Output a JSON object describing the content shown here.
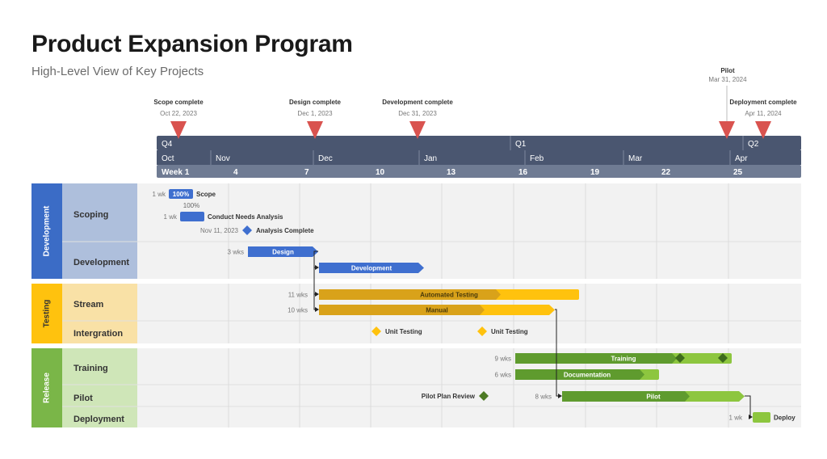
{
  "page": {
    "title": "Product Expansion Program",
    "subtitle": "High-Level View of Key Projects"
  },
  "colors": {
    "header_dark": "#4a5670",
    "header_light": "#6f7b93",
    "milestone_red": "#d9534f",
    "dev_dark": "#3f6fcf",
    "dev_light": "#aebfdc",
    "dev_band": "#3b6cc6",
    "test_dark": "#d9a21a",
    "test_light": "#ffc20e",
    "test_label": "#f9e1a6",
    "test_band": "#ffc20e",
    "rel_dark": "#5f9b2e",
    "rel_light": "#8dc63f",
    "rel_label": "#cfe6b8",
    "rel_band": "#7ab648",
    "row_bg": "#f2f2f2"
  },
  "chart_data": {
    "type": "gantt",
    "timeline": {
      "quarters": [
        {
          "label": "Q4",
          "start": "2023-10-01"
        },
        {
          "label": "Q1",
          "start": "2024-01-01"
        },
        {
          "label": "Q2",
          "start": "2024-04-01"
        }
      ],
      "months": [
        {
          "label": "Oct",
          "start": "2023-10-01"
        },
        {
          "label": "Nov",
          "start": "2023-11-01"
        },
        {
          "label": "Dec",
          "start": "2023-12-01"
        },
        {
          "label": "Jan",
          "start": "2024-01-01"
        },
        {
          "label": "Feb",
          "start": "2024-02-01"
        },
        {
          "label": "Mar",
          "start": "2024-03-01"
        },
        {
          "label": "Apr",
          "start": "2024-04-01"
        }
      ],
      "weeks": [
        {
          "label": "Week 1",
          "date": "2023-10-02"
        },
        {
          "label": "4",
          "date": "2023-11-04"
        },
        {
          "label": "7",
          "date": "2023-12-02"
        },
        {
          "label": "10",
          "date": "2023-12-30"
        },
        {
          "label": "13",
          "date": "2024-01-27"
        },
        {
          "label": "16",
          "date": "2024-02-24"
        },
        {
          "label": "19",
          "date": "2024-03-23"
        },
        {
          "label": "22",
          "date": "2024-04-20"
        },
        {
          "label": "25",
          "date": "2024-05-18"
        }
      ]
    },
    "top_milestones": [
      {
        "name": "Scope complete",
        "date_label": "Oct 22, 2023"
      },
      {
        "name": "Design complete",
        "date_label": "Dec 1, 2023"
      },
      {
        "name": "Development complete",
        "date_label": "Dec 31, 2023"
      },
      {
        "name": "Pilot",
        "date_label": "Mar 31, 2024"
      },
      {
        "name": "Deployment complete",
        "date_label": "Apr 11, 2024"
      }
    ],
    "groups": [
      {
        "name": "Development",
        "rows": [
          {
            "name": "Scoping"
          },
          {
            "name": "Development"
          }
        ]
      },
      {
        "name": "Testing",
        "rows": [
          {
            "name": "Stream"
          },
          {
            "name": "Intergration"
          }
        ]
      },
      {
        "name": "Release",
        "rows": [
          {
            "name": "Training"
          },
          {
            "name": "Pilot"
          },
          {
            "name": "Deployment"
          }
        ]
      }
    ],
    "tasks": [
      {
        "name": "Scope",
        "duration": "1 wk",
        "percent": "100%",
        "start": "2023-10-15",
        "end": "2023-10-22"
      },
      {
        "name": "Conduct Needs Analysis",
        "duration": "1 wk",
        "percent": "100%",
        "start": "2023-10-17",
        "end": "2023-10-24"
      },
      {
        "name": "Design",
        "duration": "3 wks",
        "start": "2023-11-10",
        "end": "2023-12-01"
      },
      {
        "name": "Development",
        "duration": "",
        "start": "2023-12-03",
        "end": "2023-12-31"
      },
      {
        "name": "Automated Testing",
        "duration": "11 wks",
        "start": "2023-12-03",
        "end": "2024-02-18"
      },
      {
        "name": "Manual",
        "duration": "10 wks",
        "start": "2023-12-03",
        "end": "2024-02-11"
      },
      {
        "name": "Training",
        "duration": "9 wks",
        "start": "2024-01-29",
        "end": "2024-04-01"
      },
      {
        "name": "Documentation",
        "duration": "6 wks",
        "start": "2024-01-29",
        "end": "2024-03-11"
      },
      {
        "name": "Pilot",
        "duration": "8 wks",
        "start": "2024-02-12",
        "end": "2024-04-08"
      },
      {
        "name": "Deploy",
        "duration": "1 wk",
        "start": "2024-04-08",
        "end": "2024-04-15"
      }
    ],
    "milestones": [
      {
        "name": "Analysis Complete",
        "date_label": "Nov 11, 2023"
      },
      {
        "name": "Unit Testing",
        "date": "2023-12-10"
      },
      {
        "name": "Unit Testing",
        "date": "2024-01-07"
      },
      {
        "name": "Pilot Plan Review",
        "date": "2024-01-28"
      }
    ]
  }
}
